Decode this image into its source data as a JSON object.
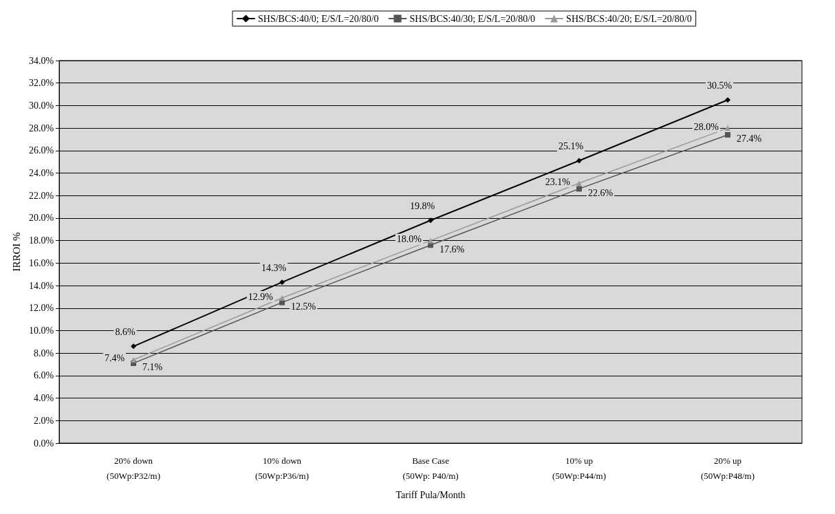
{
  "chart_data": {
    "type": "line",
    "xlabel": "Tariff Pula/Month",
    "ylabel": "IRROI %",
    "categories": [
      "20% down\n(50Wp:P32/m)",
      "10% down\n(50Wp:P36/m)",
      "Base Case\n(50Wp: P40/m)",
      "10% up\n(50Wp:P44/m)",
      "20% up\n(50Wp:P48/m)"
    ],
    "series": [
      {
        "name": "SHS/BCS:40/0; E/S/L=20/80/0",
        "color": "#000000",
        "marker": "diamond",
        "values": [
          8.6,
          14.3,
          19.8,
          25.1,
          30.5
        ],
        "value_labels": [
          "8.6%",
          "14.3%",
          "19.8%",
          "25.1%",
          "30.5%"
        ]
      },
      {
        "name": "SHS/BCS:40/30; E/S/L=20/80/0",
        "color": "#555555",
        "marker": "square",
        "values": [
          7.1,
          12.5,
          17.6,
          22.6,
          27.4
        ],
        "value_labels": [
          "7.1%",
          "12.5%",
          "17.6%",
          "22.6%",
          "27.4%"
        ]
      },
      {
        "name": "SHS/BCS:40/20; E/S/L=20/80/0",
        "color": "#999999",
        "marker": "triangle",
        "values": [
          7.4,
          12.9,
          18.0,
          23.1,
          28.0
        ],
        "value_labels": [
          "7.4%",
          "12.9%",
          "18.0%",
          "23.1%",
          "28.0%"
        ]
      }
    ],
    "ylim": [
      0,
      34
    ],
    "yticks": [
      {
        "value": 0,
        "label": "0.0%"
      },
      {
        "value": 2,
        "label": "2.0%"
      },
      {
        "value": 4,
        "label": "4.0%"
      },
      {
        "value": 6,
        "label": "6.0%"
      },
      {
        "value": 8,
        "label": "8.0%"
      },
      {
        "value": 10,
        "label": "10.0%"
      },
      {
        "value": 12,
        "label": "12.0%"
      },
      {
        "value": 14,
        "label": "14.0%"
      },
      {
        "value": 16,
        "label": "16.0%"
      },
      {
        "value": 18,
        "label": "18.0%"
      },
      {
        "value": 20,
        "label": "20.0%"
      },
      {
        "value": 22,
        "label": "22.0%"
      },
      {
        "value": 24,
        "label": "24.0%"
      },
      {
        "value": 26,
        "label": "26.0%"
      },
      {
        "value": 28,
        "label": "28.0%"
      },
      {
        "value": 30,
        "label": "30.0%"
      },
      {
        "value": 32,
        "label": "32.0%"
      },
      {
        "value": 34,
        "label": "34.0%"
      }
    ],
    "grid": "y",
    "legend": "top",
    "line_style": "solid"
  }
}
